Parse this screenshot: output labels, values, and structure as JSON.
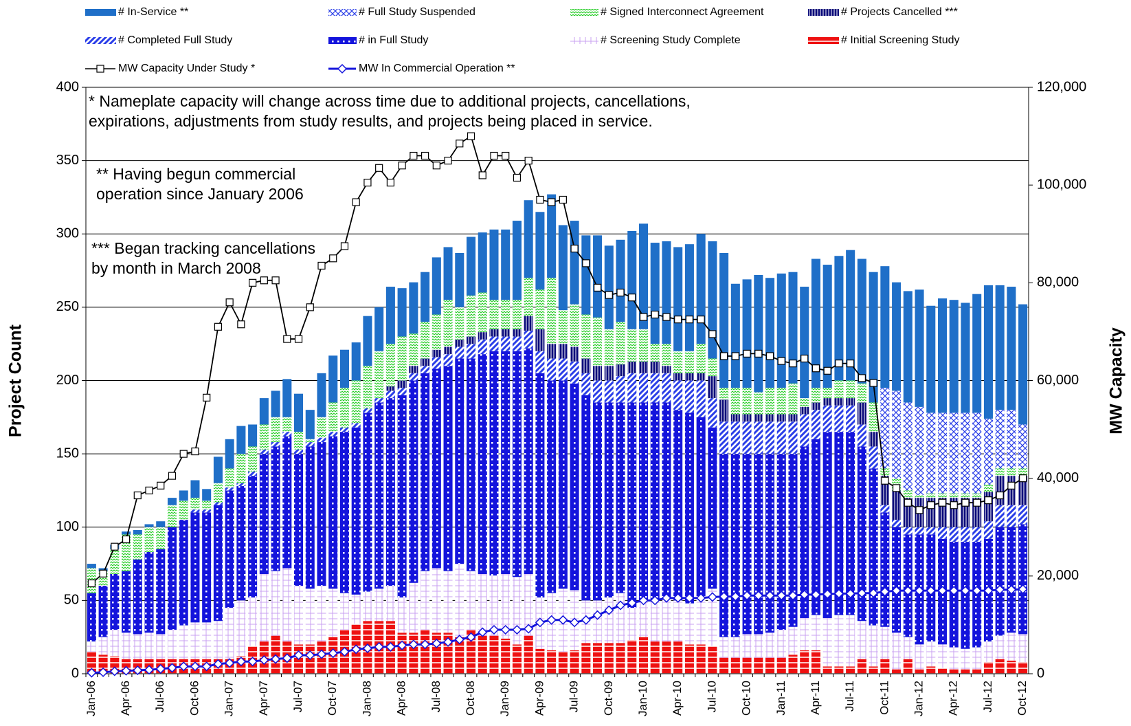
{
  "chart_data": {
    "type": "bar",
    "stacked": true,
    "grid": true,
    "y_label": "Project Count",
    "y2_label": "MW Capacity",
    "annotations": [
      {
        "lines": [
          "* Nameplate capacity will change across time due to additional projects, cancellations,",
          "expirations, adjustments from study results, and projects being placed in service."
        ]
      },
      {
        "lines": [
          "** Having begun commercial",
          "operation since January 2006"
        ]
      },
      {
        "lines": [
          "*** Began tracking cancellations",
          "by month in March 2008"
        ]
      }
    ],
    "categories": [
      "Jan-06",
      null,
      null,
      "Apr-06",
      null,
      null,
      "Jul-06",
      null,
      null,
      "Oct-06",
      null,
      null,
      "Jan-07",
      null,
      null,
      "Apr-07",
      null,
      null,
      "Jul-07",
      null,
      null,
      "Oct-07",
      null,
      null,
      "Jan-08",
      null,
      null,
      "Apr-08",
      null,
      null,
      "Jul-08",
      null,
      null,
      "Oct-08",
      null,
      null,
      "Jan-09",
      null,
      null,
      "Apr-09",
      null,
      null,
      "Jul-09",
      null,
      null,
      "Oct-09",
      null,
      null,
      "Jan-10",
      null,
      null,
      "Apr-10",
      null,
      null,
      "Jul-10",
      null,
      null,
      "Oct-10",
      null,
      null,
      "Jan-11",
      null,
      null,
      "Apr-11",
      null,
      null,
      "Jul-11",
      null,
      null,
      "Oct-11",
      null,
      null,
      "Jan-12",
      null,
      null,
      "Apr-12",
      null,
      null,
      "Jul-12",
      null,
      null,
      "Oct-12"
    ],
    "ylim": [
      0,
      400
    ],
    "yticks": [
      0,
      50,
      100,
      150,
      200,
      250,
      300,
      350,
      400
    ],
    "y2lim": [
      0,
      120000
    ],
    "y2ticks": [
      0,
      {
        "value": 20000,
        "label": "20,000"
      },
      {
        "value": 40000,
        "label": "40,000"
      },
      {
        "value": 60000,
        "label": "60,000"
      },
      {
        "value": 80000,
        "label": "80,000"
      },
      {
        "value": 100000,
        "label": "100,000"
      },
      {
        "value": 120000,
        "label": "120,000"
      }
    ],
    "series": [
      {
        "name": "# In-Service **",
        "color": "#1f6fc8",
        "pattern": "solid",
        "values": [
          3,
          2,
          3,
          2,
          3,
          2,
          4,
          5,
          7,
          12,
          8,
          18,
          20,
          19,
          15,
          18,
          18,
          26,
          26,
          20,
          30,
          32,
          26,
          26,
          34,
          30,
          39,
          33,
          35,
          34,
          39,
          36,
          37,
          40,
          41,
          48,
          48,
          54,
          53,
          53,
          57,
          58,
          57,
          54,
          56,
          57,
          56,
          67,
          72,
          69,
          70,
          71,
          73,
          75,
          80,
          92,
          71,
          74,
          80,
          75,
          78,
          76,
          76,
          88,
          84,
          85,
          89,
          85,
          89,
          83,
          74,
          76,
          80,
          73,
          78,
          77,
          75,
          81,
          91,
          85,
          84,
          82
        ]
      },
      {
        "name": "# Full Study Suspended",
        "color": "#2a3ee8",
        "pattern": "crosshatch",
        "values": [
          0,
          0,
          0,
          0,
          0,
          0,
          0,
          0,
          0,
          0,
          0,
          0,
          0,
          0,
          0,
          0,
          0,
          0,
          0,
          0,
          0,
          0,
          0,
          0,
          0,
          0,
          0,
          0,
          0,
          0,
          0,
          0,
          0,
          0,
          0,
          0,
          0,
          0,
          0,
          0,
          0,
          0,
          0,
          0,
          0,
          0,
          0,
          0,
          0,
          0,
          0,
          0,
          0,
          0,
          0,
          0,
          0,
          0,
          0,
          0,
          0,
          0,
          0,
          0,
          0,
          0,
          0,
          0,
          0,
          55,
          60,
          60,
          60,
          55,
          55,
          55,
          55,
          55,
          45,
          40,
          40,
          30
        ]
      },
      {
        "name": "# Signed Interconnect Agreement",
        "color": "#22cc22",
        "pattern": "zigzag",
        "values": [
          17,
          10,
          17,
          25,
          17,
          17,
          15,
          15,
          13,
          8,
          6,
          13,
          13,
          20,
          17,
          17,
          17,
          10,
          12,
          2,
          14,
          20,
          27,
          29,
          29,
          32,
          29,
          30,
          22,
          25,
          24,
          32,
          22,
          28,
          27,
          20,
          20,
          20,
          26,
          27,
          45,
          23,
          29,
          30,
          33,
          25,
          29,
          22,
          22,
          12,
          15,
          15,
          15,
          20,
          12,
          8,
          18,
          18,
          15,
          18,
          18,
          21,
          6,
          10,
          7,
          12,
          12,
          13,
          20,
          5,
          8,
          5,
          2,
          3,
          3,
          3,
          3,
          3,
          5,
          5,
          5,
          5
        ]
      },
      {
        "name": "# Projects Cancelled ***",
        "color": "#0a0a7a",
        "pattern": "vstripes",
        "values": [
          0,
          0,
          0,
          0,
          0,
          0,
          0,
          0,
          0,
          0,
          0,
          0,
          0,
          0,
          0,
          0,
          0,
          0,
          0,
          0,
          0,
          0,
          0,
          0,
          0,
          0,
          3,
          5,
          5,
          5,
          5,
          5,
          5,
          5,
          5,
          5,
          5,
          5,
          10,
          15,
          10,
          10,
          10,
          10,
          10,
          10,
          8,
          8,
          8,
          8,
          5,
          5,
          5,
          5,
          15,
          15,
          5,
          5,
          5,
          5,
          5,
          5,
          5,
          5,
          5,
          5,
          5,
          15,
          10,
          20,
          20,
          20,
          20,
          20,
          20,
          20,
          20,
          20,
          20,
          20,
          20,
          20
        ]
      },
      {
        "name": "# Completed Full Study",
        "color": "#2a3ee8",
        "pattern": "diagonal",
        "values": [
          0,
          0,
          0,
          0,
          0,
          0,
          0,
          0,
          0,
          2,
          2,
          2,
          2,
          2,
          3,
          3,
          3,
          3,
          3,
          3,
          3,
          3,
          3,
          3,
          3,
          3,
          5,
          5,
          5,
          5,
          8,
          8,
          8,
          10,
          10,
          10,
          10,
          10,
          12,
          15,
          15,
          15,
          15,
          15,
          15,
          15,
          18,
          20,
          20,
          20,
          20,
          20,
          22,
          25,
          20,
          22,
          22,
          22,
          22,
          22,
          22,
          22,
          22,
          20,
          18,
          18,
          18,
          15,
          15,
          5,
          5,
          5,
          5,
          5,
          8,
          10,
          10,
          10,
          12,
          15,
          15,
          13
        ]
      },
      {
        "name": "# in Full Study",
        "color": "#1414dc",
        "pattern": "dots",
        "values": [
          33,
          35,
          38,
          42,
          51,
          55,
          58,
          70,
          72,
          75,
          75,
          79,
          80,
          78,
          83,
          82,
          85,
          90,
          90,
          97,
          98,
          104,
          110,
          114,
          122,
          127,
          128,
          138,
          138,
          135,
          136,
          140,
          140,
          145,
          150,
          153,
          152,
          154,
          154,
          153,
          145,
          142,
          141,
          140,
          135,
          133,
          130,
          140,
          135,
          135,
          133,
          130,
          130,
          122,
          110,
          125,
          125,
          123,
          123,
          122,
          120,
          118,
          117,
          120,
          127,
          125,
          125,
          119,
          107,
          78,
          72,
          70,
          75,
          73,
          72,
          72,
          73,
          72,
          70,
          74,
          72,
          75
        ]
      },
      {
        "name": "# Screening Study Complete",
        "color": "#c9a0f0",
        "pattern": "grid",
        "values": [
          7,
          12,
          18,
          18,
          17,
          18,
          17,
          20,
          23,
          25,
          25,
          26,
          35,
          38,
          33,
          46,
          44,
          50,
          40,
          38,
          38,
          33,
          25,
          20,
          20,
          22,
          24,
          24,
          34,
          40,
          44,
          42,
          50,
          40,
          42,
          41,
          44,
          46,
          42,
          35,
          39,
          43,
          41,
          29,
          29,
          31,
          34,
          22,
          25,
          28,
          30,
          28,
          28,
          33,
          39,
          14,
          14,
          16,
          16,
          17,
          19,
          19,
          22,
          24,
          33,
          35,
          35,
          26,
          28,
          22,
          25,
          15,
          17,
          17,
          16,
          15,
          14,
          15,
          14,
          16,
          19,
          19
        ]
      },
      {
        "name": "# Initial Screening Study",
        "color": "#ee1111",
        "pattern": "hstripes",
        "values": [
          15,
          13,
          12,
          10,
          10,
          10,
          10,
          10,
          10,
          10,
          10,
          10,
          10,
          12,
          19,
          22,
          26,
          22,
          20,
          20,
          22,
          25,
          30,
          34,
          36,
          36,
          36,
          28,
          28,
          30,
          28,
          28,
          25,
          30,
          26,
          26,
          24,
          20,
          26,
          17,
          16,
          15,
          16,
          21,
          21,
          21,
          21,
          23,
          25,
          22,
          22,
          22,
          20,
          20,
          19,
          11,
          11,
          11,
          11,
          11,
          11,
          13,
          16,
          16,
          5,
          5,
          5,
          10,
          5,
          10,
          3,
          10,
          3,
          5,
          4,
          3,
          3,
          3,
          8,
          10,
          9,
          8
        ]
      },
      {
        "name": "MW Capacity Under Study *",
        "type": "line",
        "axis": "y2",
        "color": "#000000",
        "marker": "square",
        "values": [
          18500,
          20500,
          26000,
          27500,
          36500,
          37500,
          38500,
          40500,
          45000,
          45500,
          56500,
          71000,
          76000,
          71500,
          80000,
          80500,
          80500,
          68500,
          68500,
          75000,
          83500,
          85000,
          87500,
          96500,
          100500,
          103500,
          100500,
          104000,
          106000,
          106000,
          104000,
          105000,
          108500,
          110000,
          102000,
          106000,
          106000,
          101500,
          105000,
          97000,
          96500,
          97000,
          87000,
          84000,
          79000,
          77500,
          78000,
          77000,
          73000,
          73500,
          73000,
          72500,
          72500,
          72500,
          69500,
          65000,
          65000,
          65500,
          65500,
          65000,
          64000,
          63500,
          64500,
          62500,
          62000,
          63500,
          63500,
          60500,
          59500,
          39500,
          38000,
          35000,
          33500,
          34500,
          35000,
          34500,
          35000,
          35000,
          35500,
          36500,
          38500,
          40000
        ]
      },
      {
        "name": "MW In Commercial Operation **",
        "type": "line",
        "axis": "y2",
        "color": "#1414dc",
        "marker": "diamond",
        "values": [
          200,
          300,
          500,
          600,
          700,
          800,
          1000,
          1200,
          1500,
          1500,
          1500,
          2000,
          2200,
          2500,
          2500,
          2800,
          3000,
          3200,
          3800,
          3800,
          4000,
          4200,
          4500,
          5000,
          5200,
          5500,
          5500,
          5800,
          6000,
          6000,
          6200,
          6500,
          7000,
          7500,
          8500,
          9000,
          9000,
          9000,
          9200,
          10500,
          11000,
          11000,
          10500,
          11000,
          12000,
          13000,
          14000,
          14500,
          15000,
          15000,
          15500,
          15500,
          15500,
          15500,
          15700,
          15800,
          15800,
          16000,
          16000,
          16000,
          16000,
          16000,
          16200,
          16200,
          16300,
          16400,
          16400,
          16500,
          16500,
          16800,
          17000,
          17000,
          17000,
          17000,
          17000,
          17000,
          17000,
          17000,
          17000,
          17200,
          17200,
          17300
        ]
      }
    ]
  }
}
